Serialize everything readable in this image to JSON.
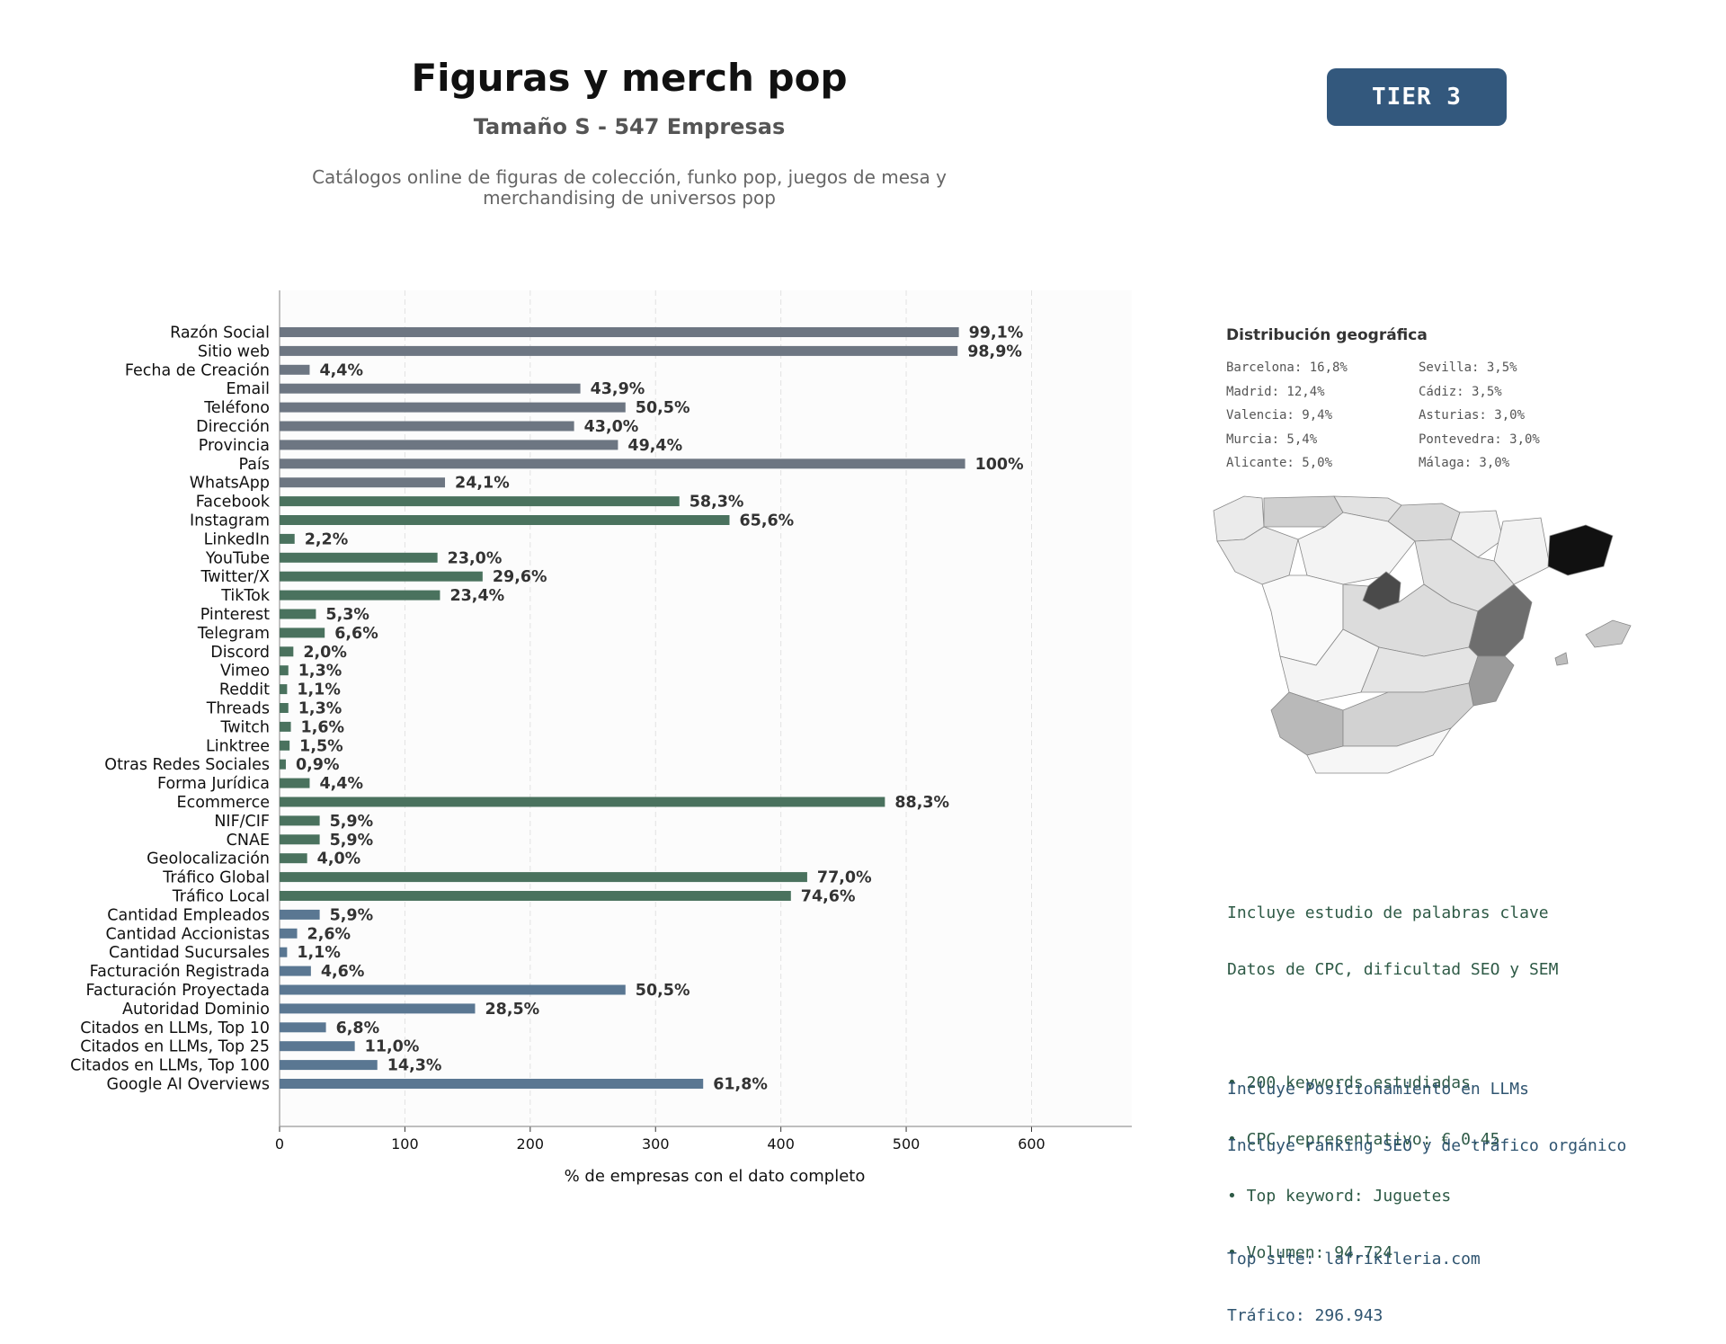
{
  "header": {
    "title": "Figuras y merch pop",
    "subtitle": "Tamaño S - 547 Empresas",
    "description_lines": [
      "Catálogos online de figuras de colección, funko pop, juegos de mesa y",
      "merchandising de universos pop"
    ],
    "tier_label": "TIER 3"
  },
  "chart_data": {
    "type": "bar",
    "orientation": "horizontal",
    "xlabel": "% de empresas con el dato completo",
    "ylabel": "",
    "xlim": [
      0,
      680
    ],
    "xticks": [
      0,
      100,
      200,
      300,
      400,
      500,
      600
    ],
    "grid": true,
    "colors": {
      "datos": "#6d7682",
      "redes": "#4a725e",
      "avanzado": "#5a7792"
    },
    "categories": [
      "Razón Social",
      "Sitio web",
      "Fecha de Creación",
      "Email",
      "Teléfono",
      "Dirección",
      "Provincia",
      "País",
      "WhatsApp",
      "Facebook",
      "Instagram",
      "LinkedIn",
      "YouTube",
      "Twitter/X",
      "TikTok",
      "Pinterest",
      "Telegram",
      "Discord",
      "Vimeo",
      "Reddit",
      "Threads",
      "Twitch",
      "Linktree",
      "Otras Redes Sociales",
      "Forma Jurídica",
      "Ecommerce",
      "NIF/CIF",
      "CNAE",
      "Geolocalización",
      "Tráfico Global",
      "Tráfico Local",
      "Cantidad Empleados",
      "Cantidad Accionistas",
      "Cantidad Sucursales",
      "Facturación Registrada",
      "Facturación Proyectada",
      "Autoridad Dominio",
      "Citados en LLMs, Top 10",
      "Citados en LLMs, Top 25",
      "Citados en LLMs, Top 100",
      "Google AI Overviews"
    ],
    "values": [
      542,
      541,
      24,
      240,
      276,
      235,
      270,
      547,
      132,
      319,
      359,
      12,
      126,
      162,
      128,
      29,
      36,
      11,
      7,
      6,
      7,
      9,
      8,
      5,
      24,
      483,
      32,
      32,
      22,
      421,
      408,
      32,
      14,
      6,
      25,
      276,
      156,
      37,
      60,
      78,
      338
    ],
    "labels": [
      "99,1%",
      "98,9%",
      "4,4%",
      "43,9%",
      "50,5%",
      "43,0%",
      "49,4%",
      "100%",
      "24,1%",
      "58,3%",
      "65,6%",
      "2,2%",
      "23,0%",
      "29,6%",
      "23,4%",
      "5,3%",
      "6,6%",
      "2,0%",
      "1,3%",
      "1,1%",
      "1,3%",
      "1,6%",
      "1,5%",
      "0,9%",
      "4,4%",
      "88,3%",
      "5,9%",
      "5,9%",
      "4,0%",
      "77,0%",
      "74,6%",
      "5,9%",
      "2,6%",
      "1,1%",
      "4,6%",
      "50,5%",
      "28,5%",
      "6,8%",
      "11,0%",
      "14,3%",
      "61,8%"
    ],
    "groups": [
      "datos",
      "datos",
      "datos",
      "datos",
      "datos",
      "datos",
      "datos",
      "datos",
      "datos",
      "redes",
      "redes",
      "redes",
      "redes",
      "redes",
      "redes",
      "redes",
      "redes",
      "redes",
      "redes",
      "redes",
      "redes",
      "redes",
      "redes",
      "redes",
      "redes",
      "redes",
      "redes",
      "redes",
      "redes",
      "redes",
      "redes",
      "avanzado",
      "avanzado",
      "avanzado",
      "avanzado",
      "avanzado",
      "avanzado",
      "avanzado",
      "avanzado",
      "avanzado",
      "avanzado"
    ]
  },
  "geo": {
    "title": "Distribución geográfica",
    "left": [
      "Barcelona: 16,8%",
      "Madrid: 12,4%",
      "Valencia: 9,4%",
      "Murcia: 5,4%",
      "Alicante: 5,0%"
    ],
    "right": [
      "Sevilla: 3,5%",
      "Cádiz: 3,5%",
      "Asturias: 3,0%",
      "Pontevedra: 3,0%",
      "Málaga: 3,0%"
    ]
  },
  "keywords": {
    "lines": [
      "Incluye estudio de palabras clave",
      "Datos de CPC, dificultad SEO y SEM",
      "",
      "• 200 keywords estudiadas",
      "• CPC representativo: € 0.45",
      "• Top keyword: Juguetes",
      "• Volumen: 94.724"
    ]
  },
  "llm": {
    "lines": [
      "Incluye Posicionamiento en LLMs",
      "Incluye ranking SEO y de tráfico orgánico",
      "",
      "Top site: lafrikileria.com",
      "Tráfico: 296.943"
    ]
  }
}
